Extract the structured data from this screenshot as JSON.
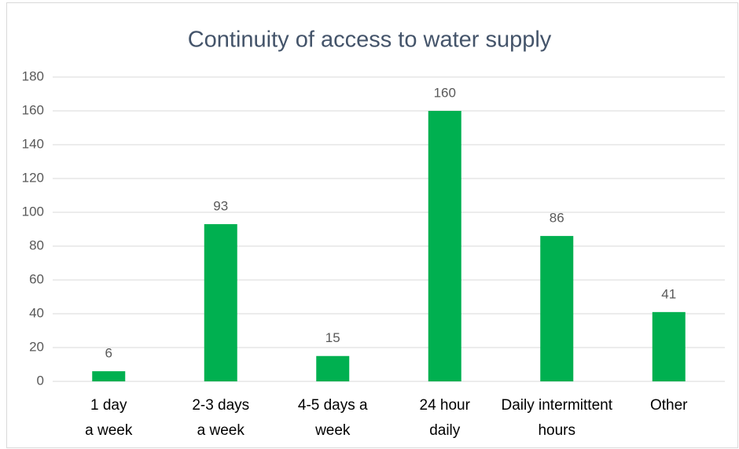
{
  "chart_data": {
    "type": "bar",
    "title": "Continuity of access to water supply",
    "categories": [
      "1 day\na week",
      "2-3 days\na week",
      "4-5 days a\nweek",
      "24 hour\ndaily",
      "Daily intermittent\nhours",
      "Other"
    ],
    "values": [
      6,
      93,
      15,
      160,
      86,
      41
    ],
    "color": "#00b050",
    "ylim": [
      0,
      180
    ],
    "yticks": [
      0,
      20,
      40,
      60,
      80,
      100,
      120,
      140,
      160,
      180
    ],
    "grid": true,
    "data_labels": true
  }
}
